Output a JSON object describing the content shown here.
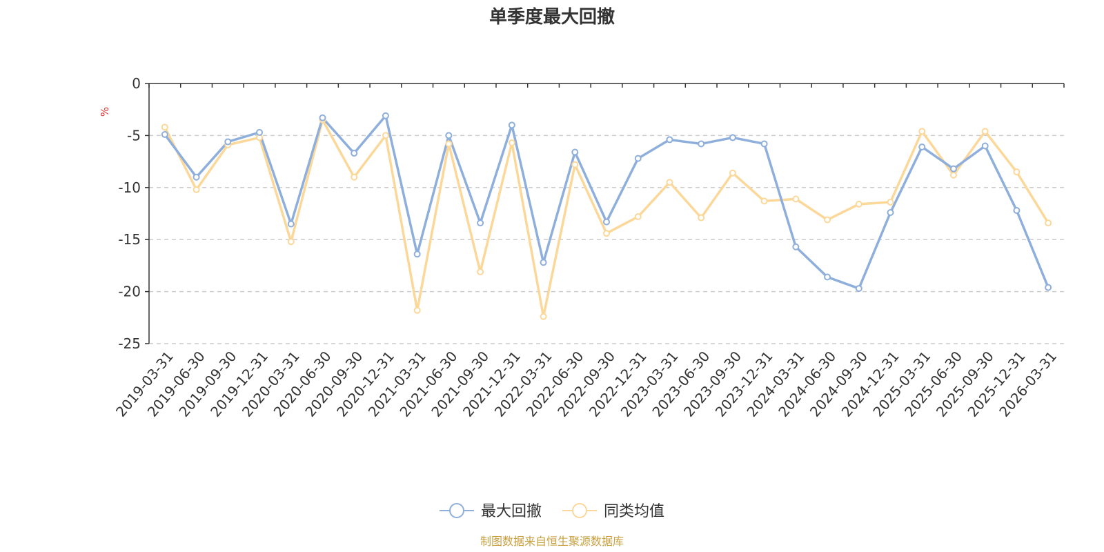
{
  "chart_data": {
    "type": "line",
    "title": "单季度最大回撤",
    "ylabel": "%",
    "ylim": [
      -25,
      0
    ],
    "yticks": [
      0,
      -5,
      -10,
      -15,
      -20,
      -25
    ],
    "grid": true,
    "legend_position": "bottom",
    "categories": [
      "2019-03-31",
      "2019-06-30",
      "2019-09-30",
      "2019-12-31",
      "2020-03-31",
      "2020-06-30",
      "2020-09-30",
      "2020-12-31",
      "2021-03-31",
      "2021-06-30",
      "2021-09-30",
      "2021-12-31",
      "2022-03-31",
      "2022-06-30",
      "2022-09-30",
      "2022-12-31",
      "2023-03-31",
      "2023-06-30",
      "2023-09-30",
      "2023-12-31",
      "2024-03-31",
      "2024-06-30",
      "2024-09-30",
      "2024-12-31",
      "2025-03-31",
      "2025-06-30",
      "2025-09-30",
      "2025-12-31",
      "2026-03-31"
    ],
    "series": [
      {
        "name": "最大回撤",
        "color": "#8eaedb",
        "values": [
          -4.9,
          -9.0,
          -5.6,
          -4.7,
          -13.5,
          -3.3,
          -6.7,
          -3.1,
          -16.4,
          -5.0,
          -13.4,
          -4.0,
          -17.2,
          -6.6,
          -13.3,
          -7.2,
          -5.4,
          -5.8,
          -5.2,
          -5.8,
          -15.7,
          -18.6,
          -19.7,
          -12.4,
          -6.1,
          -8.2,
          -6.0,
          -12.2,
          -19.6
        ]
      },
      {
        "name": "同类均值",
        "color": "#fbd89a",
        "values": [
          -4.2,
          -10.2,
          -5.9,
          -5.2,
          -15.2,
          -3.5,
          -9.0,
          -5.0,
          -21.8,
          -5.8,
          -18.1,
          -5.7,
          -22.4,
          -7.8,
          -14.4,
          -12.8,
          -9.5,
          -12.9,
          -8.6,
          -11.3,
          -11.1,
          -13.1,
          -11.6,
          -11.4,
          -4.6,
          -8.8,
          -4.6,
          -8.5,
          -13.4
        ]
      }
    ]
  },
  "source": "制图数据来自恒生聚源数据库"
}
